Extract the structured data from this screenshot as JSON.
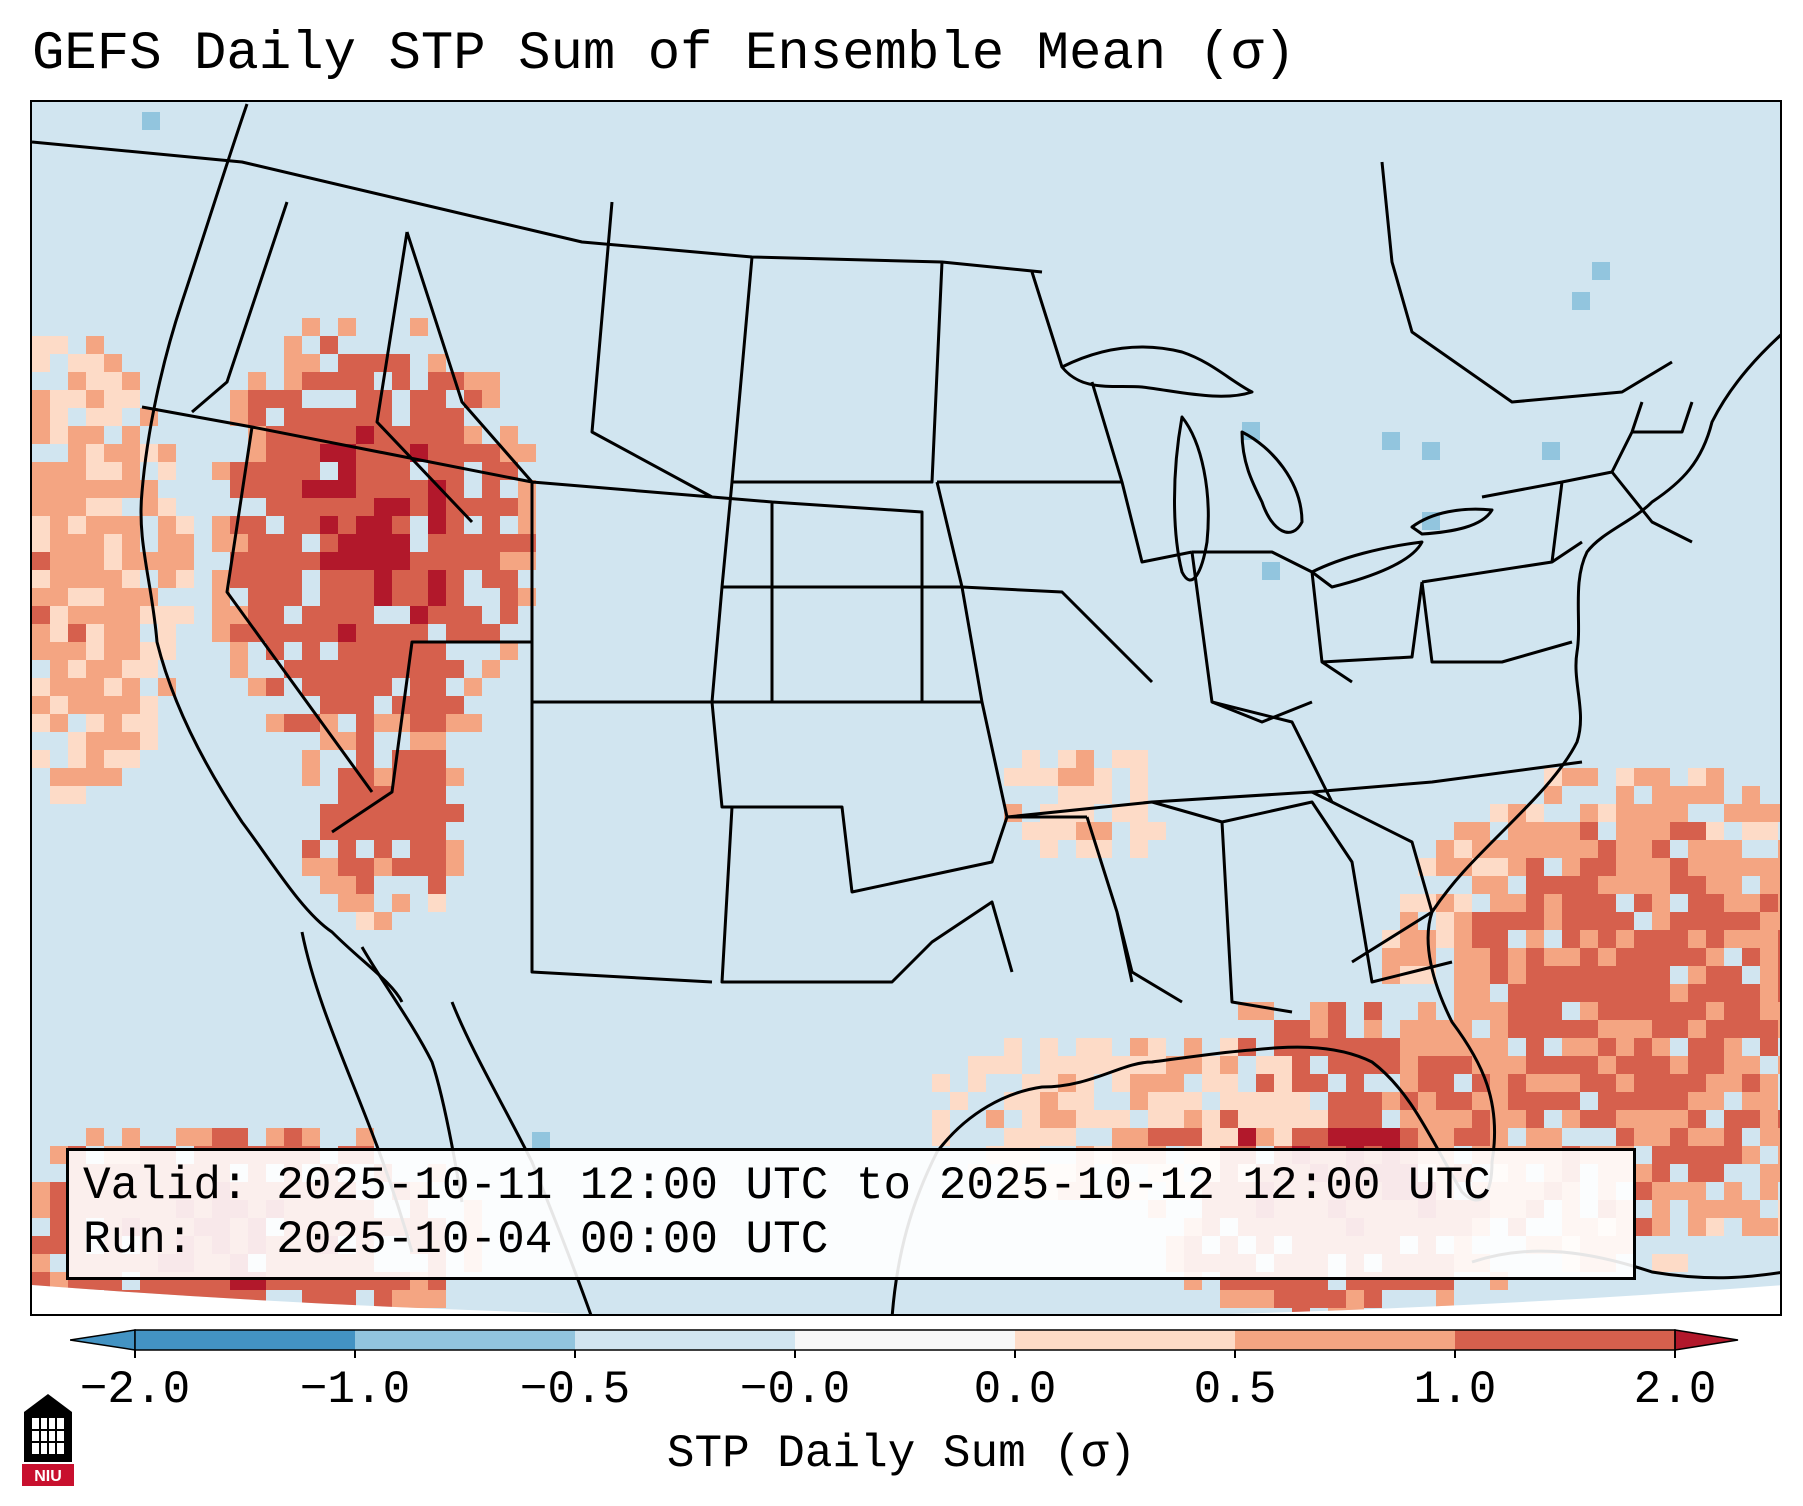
{
  "title": "GEFS Daily STP Sum of Ensemble Mean (σ)",
  "info": {
    "valid_label": "Valid:",
    "valid_value": "2025-10-11 12:00 UTC to 2025-10-12 12:00 UTC",
    "run_label": "Run:",
    "run_value": "2025-10-04 00:00 UTC"
  },
  "colorbar": {
    "label": "STP Daily Sum (σ)",
    "ticks": [
      "−2.0",
      "−1.0",
      "−0.5",
      "−0.0",
      "0.0",
      "0.5",
      "1.0",
      "2.0"
    ],
    "colors": [
      "#4393c3",
      "#92c5de",
      "#d1e5f0",
      "#f7f7f7",
      "#fddbc7",
      "#f4a582",
      "#d6604d",
      "#b2182b"
    ],
    "extend": "both"
  },
  "map": {
    "projection": "CONUS Lambert Conformal",
    "background_color": "#d1e5f0",
    "anomaly_regions": [
      {
        "name": "intermountain-west",
        "sigma": 2.0
      },
      {
        "name": "southwest-arizona",
        "sigma": 1.5
      },
      {
        "name": "eastern-gulf-florida",
        "sigma": 2.0
      },
      {
        "name": "western-atlantic",
        "sigma": 1.2
      },
      {
        "name": "pacific-offshore-california",
        "sigma": 0.7
      },
      {
        "name": "baja-pacific",
        "sigma": 2.0
      },
      {
        "name": "western-gulf",
        "sigma": 0.3
      },
      {
        "name": "arkansas-missouri",
        "sigma": 0.3
      }
    ]
  },
  "logo": {
    "text": "NIU",
    "colors": [
      "#c8102e",
      "#000000"
    ]
  }
}
